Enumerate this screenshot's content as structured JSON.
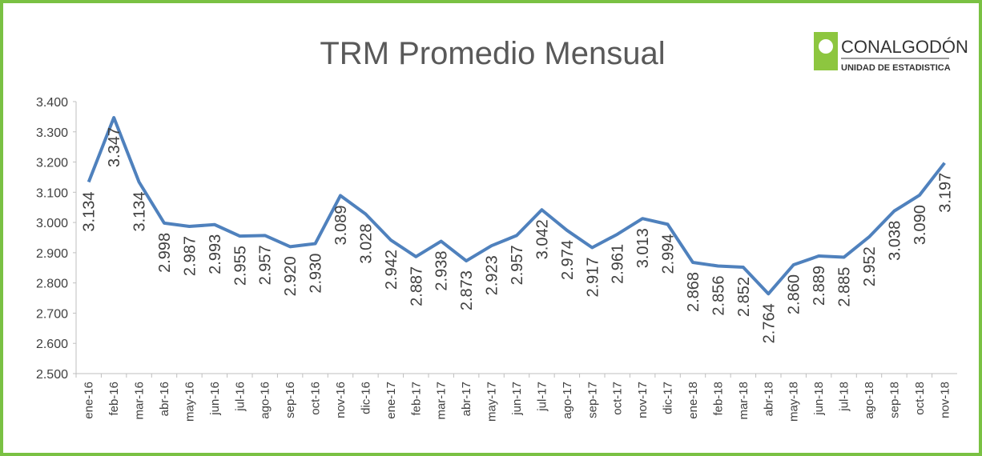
{
  "chart_data": {
    "type": "line",
    "title": "TRM Promedio Mensual",
    "logo": {
      "name": "CONALGODÓN",
      "subtitle": "UNIDAD DE ESTADISTICA"
    },
    "categories": [
      "ene-16",
      "feb-16",
      "mar-16",
      "abr-16",
      "may-16",
      "jun-16",
      "jul-16",
      "ago-16",
      "sep-16",
      "oct-16",
      "nov-16",
      "dic-16",
      "ene-17",
      "feb-17",
      "mar-17",
      "abr-17",
      "may-17",
      "jun-17",
      "jul-17",
      "ago-17",
      "sep-17",
      "oct-17",
      "nov-17",
      "dic-17",
      "ene-18",
      "feb-18",
      "mar-18",
      "abr-18",
      "may-18",
      "jun-18",
      "jul-18",
      "ago-18",
      "sep-18",
      "oct-18",
      "nov-18"
    ],
    "series": [
      {
        "name": "TRM",
        "color": "#4f81bd",
        "values": [
          3134,
          3347,
          3134,
          2998,
          2987,
          2993,
          2955,
          2957,
          2920,
          2930,
          3089,
          3028,
          2942,
          2887,
          2938,
          2873,
          2923,
          2957,
          3042,
          2974,
          2917,
          2961,
          3013,
          2994,
          2868,
          2856,
          2852,
          2764,
          2860,
          2889,
          2885,
          2952,
          3038,
          3090,
          3197
        ],
        "value_labels": [
          "3.134",
          "3.347",
          "3.134",
          "2.998",
          "2.987",
          "2.993",
          "2.955",
          "2.957",
          "2.920",
          "2.930",
          "3.089",
          "3.028",
          "2.942",
          "2.887",
          "2.938",
          "2.873",
          "2.923",
          "2.957",
          "3.042",
          "2.974",
          "2.917",
          "2.961",
          "3.013",
          "2.994",
          "2.868",
          "2.856",
          "2.852",
          "2.764",
          "2.860",
          "2.889",
          "2.885",
          "2.952",
          "3.038",
          "3.090",
          "3.197"
        ]
      }
    ],
    "ylim": [
      2500,
      3400
    ],
    "yticks": [
      {
        "value": 2500,
        "label": "2.500"
      },
      {
        "value": 2600,
        "label": "2.600"
      },
      {
        "value": 2700,
        "label": "2.700"
      },
      {
        "value": 2800,
        "label": "2.800"
      },
      {
        "value": 2900,
        "label": "2.900"
      },
      {
        "value": 3000,
        "label": "3.000"
      },
      {
        "value": 3100,
        "label": "3.100"
      },
      {
        "value": 3200,
        "label": "3.200"
      },
      {
        "value": 3300,
        "label": "3.300"
      },
      {
        "value": 3400,
        "label": "3.400"
      }
    ],
    "grid": false
  }
}
